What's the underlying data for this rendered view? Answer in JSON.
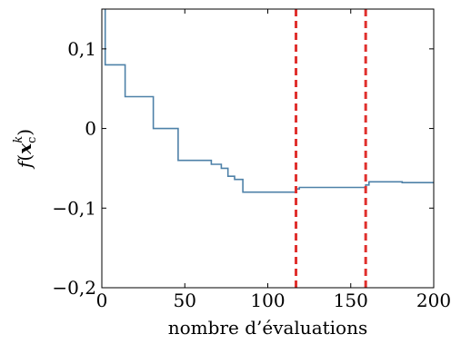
{
  "chart_data": {
    "type": "line",
    "title": "",
    "xlabel": "nombre d’évaluations",
    "ylabel": {
      "f": "f",
      "open": "(",
      "x": "x",
      "sub": "c",
      "sup": "k",
      "close": ")"
    },
    "xlim": [
      0,
      200
    ],
    "ylim": [
      -0.2,
      0.15
    ],
    "x_ticks": [
      {
        "value": 0,
        "label": "0"
      },
      {
        "value": 50,
        "label": "50"
      },
      {
        "value": 100,
        "label": "100"
      },
      {
        "value": 150,
        "label": "150"
      },
      {
        "value": 200,
        "label": "200"
      }
    ],
    "y_ticks": [
      {
        "value": 0.1,
        "label": "0,1"
      },
      {
        "value": 0,
        "label": "0"
      },
      {
        "value": -0.1,
        "label": "−0,1"
      },
      {
        "value": -0.2,
        "label": "−0,2"
      }
    ],
    "grid": false,
    "series": [
      {
        "color": "#4e81a8",
        "step": true,
        "points": [
          [
            2,
            0.15
          ],
          [
            2,
            0.08
          ],
          [
            14,
            0.08
          ],
          [
            14,
            0.04
          ],
          [
            31,
            0.04
          ],
          [
            31,
            0.0
          ],
          [
            46,
            0.0
          ],
          [
            46,
            -0.04
          ],
          [
            66,
            -0.04
          ],
          [
            66,
            -0.045
          ],
          [
            72,
            -0.045
          ],
          [
            72,
            -0.05
          ],
          [
            76,
            -0.05
          ],
          [
            76,
            -0.06
          ],
          [
            80,
            -0.06
          ],
          [
            80,
            -0.064
          ],
          [
            85,
            -0.064
          ],
          [
            85,
            -0.08
          ],
          [
            117,
            -0.08
          ],
          [
            117,
            -0.076
          ],
          [
            119,
            -0.076
          ],
          [
            119,
            -0.074
          ],
          [
            159,
            -0.074
          ],
          [
            159,
            -0.071
          ],
          [
            161,
            -0.071
          ],
          [
            161,
            -0.067
          ],
          [
            181,
            -0.067
          ],
          [
            181,
            -0.068
          ],
          [
            200,
            -0.068
          ]
        ]
      }
    ],
    "vlines": [
      {
        "x": 117,
        "color": "#e0302d",
        "style": "dashed"
      },
      {
        "x": 159,
        "color": "#e0302d",
        "style": "dashed"
      }
    ]
  }
}
